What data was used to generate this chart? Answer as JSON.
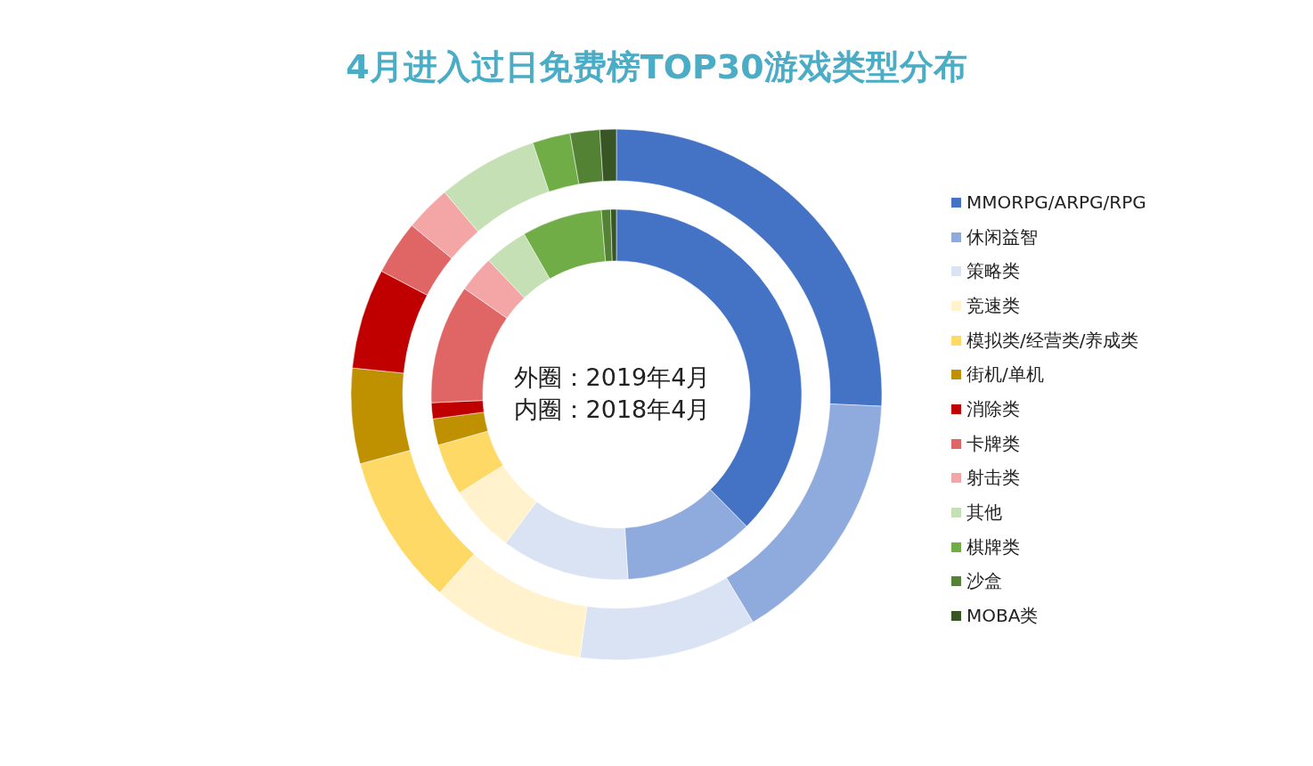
{
  "chart_data": {
    "type": "donut",
    "title": "4月进入过日免费榜TOP30游戏类型分布",
    "categories": [
      "MMORPG/ARPG/RPG",
      "休闲益智",
      "策略类",
      "竞速类",
      "模拟类/经营类/养成类",
      "街机/单机",
      "消除类",
      "卡牌类",
      "射击类",
      "其他",
      "棋牌类",
      "沙盒",
      "MOBA类"
    ],
    "colors": [
      "#4472c4",
      "#8faadc",
      "#dae3f3",
      "#fff2cc",
      "#ffd966",
      "#bf9000",
      "#c00000",
      "#e06666",
      "#f4a6a6",
      "#c5e0b4",
      "#70ad47",
      "#548235",
      "#375623"
    ],
    "series": [
      {
        "values": [
          25.7,
          15.7,
          10.8,
          9.4,
          9.2,
          5.8,
          6.1,
          3.3,
          2.8,
          6.1,
          2.3,
          1.8,
          1.0
        ]
      },
      {
        "values": [
          37.6,
          11.4,
          11.2,
          5.9,
          4.5,
          2.3,
          1.4,
          10.4,
          3.2,
          3.8,
          7.0,
          0.8,
          0.5
        ]
      }
    ],
    "annotations": [
      "外圈：2019年4月",
      "内圈：2018年4月"
    ],
    "legend": "right"
  }
}
